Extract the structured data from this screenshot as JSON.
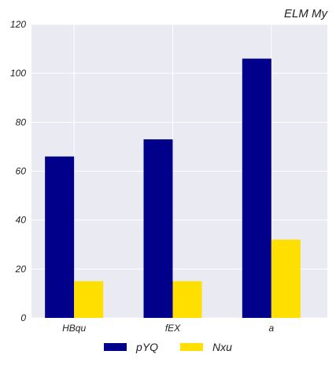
{
  "chart_data": {
    "type": "bar",
    "title": "ELM My",
    "categories": [
      "HBqu",
      "fEX",
      "a"
    ],
    "series": [
      {
        "name": "pYQ",
        "values": [
          66,
          73,
          106
        ],
        "color": "#00008b"
      },
      {
        "name": "Nxu",
        "values": [
          15,
          15,
          32
        ],
        "color": "#ffdf00"
      }
    ],
    "ylim": [
      0,
      120
    ],
    "yticks": [
      0,
      20,
      40,
      60,
      80,
      100,
      120
    ],
    "grid": true,
    "background": "#eaeaf2",
    "legend_position": "bottom-center"
  }
}
